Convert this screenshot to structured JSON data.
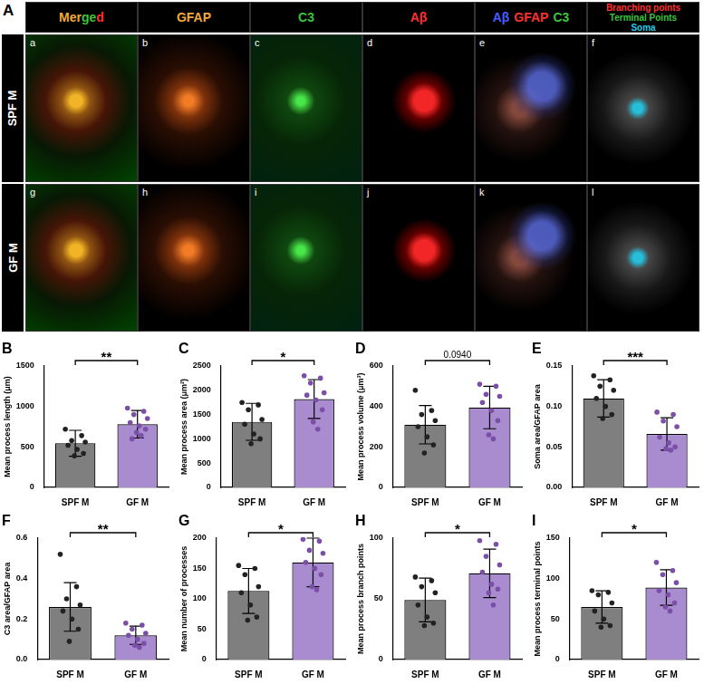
{
  "panel_a": {
    "label": "A",
    "columns": [
      {
        "parts": [
          {
            "text": "Mer",
            "color": "#f2a93b"
          },
          {
            "text": "ge",
            "color": "#3cc43c"
          },
          {
            "text": "d",
            "color": "#ff3030"
          }
        ]
      },
      {
        "parts": [
          {
            "text": "GFAP",
            "color": "#f2a93b"
          }
        ]
      },
      {
        "parts": [
          {
            "text": "C3",
            "color": "#3cc43c"
          }
        ]
      },
      {
        "parts": [
          {
            "text": "Aβ",
            "color": "#ff3030"
          }
        ]
      },
      {
        "parts": [
          {
            "text": "Aβ",
            "color": "#4a5cff"
          },
          {
            "text": "GFAP",
            "color": "#ff3030"
          },
          {
            "text": "C3",
            "color": "#3cc43c"
          }
        ]
      },
      {
        "lines": [
          {
            "text": "Branching points",
            "color": "#ff3030"
          },
          {
            "text": "Terminal Points",
            "color": "#3cc43c"
          },
          {
            "text": "Soma",
            "color": "#22c8e6"
          }
        ]
      }
    ],
    "rows": [
      {
        "label": "SPF M",
        "tiles": [
          "a",
          "b",
          "c",
          "d",
          "e",
          "f"
        ]
      },
      {
        "label": "GF M",
        "tiles": [
          "g",
          "h",
          "i",
          "j",
          "k",
          "l"
        ]
      }
    ]
  },
  "chart_data": [
    {
      "panel": "B",
      "type": "bar",
      "categories": [
        "SPF M",
        "GF M"
      ],
      "values": [
        545,
        780
      ],
      "error": [
        160,
        170
      ],
      "points": [
        [
          720,
          640,
          580,
          560,
          520,
          470,
          420,
          390
        ],
        [
          980,
          940,
          900,
          850,
          800,
          760,
          720,
          680,
          640,
          600
        ]
      ],
      "colors": [
        "#7f7f7f",
        "#a98bd0"
      ],
      "y_label": "Mean process length (μm)",
      "ylim": [
        0,
        1500
      ],
      "yticks": [
        0,
        500,
        1000,
        1500
      ],
      "annotations": [
        {
          "text": "**",
          "between": [
            "SPF M",
            "GF M"
          ]
        }
      ]
    },
    {
      "panel": "C",
      "type": "bar",
      "categories": [
        "SPF M",
        "GF M"
      ],
      "values": [
        1350,
        1820
      ],
      "error": [
        380,
        400
      ],
      "points": [
        [
          1750,
          1700,
          1600,
          1400,
          1300,
          1100,
          1000,
          900
        ],
        [
          2300,
          2250,
          2150,
          1950,
          1900,
          1800,
          1600,
          1350,
          1200
        ]
      ],
      "colors": [
        "#7f7f7f",
        "#a98bd0"
      ],
      "y_label": "Mean process area (μm²)",
      "ylim": [
        0,
        2500
      ],
      "yticks": [
        0,
        500,
        1000,
        1500,
        2000,
        2500
      ],
      "annotations": [
        {
          "text": "*",
          "between": [
            "SPF M",
            "GF M"
          ]
        }
      ]
    },
    {
      "panel": "D",
      "type": "bar",
      "categories": [
        "SPF M",
        "GF M"
      ],
      "values": [
        310,
        395
      ],
      "error": [
        95,
        105
      ],
      "points": [
        [
          480,
          380,
          360,
          330,
          300,
          250,
          210,
          170
        ],
        [
          510,
          500,
          460,
          450,
          420,
          380,
          330,
          260,
          240
        ]
      ],
      "colors": [
        "#7f7f7f",
        "#a98bd0"
      ],
      "y_label": "Mean process volume (μm³)",
      "ylim": [
        0,
        600
      ],
      "yticks": [
        0,
        200,
        400,
        600
      ],
      "annotations": [
        {
          "text": "0.0940",
          "between": [
            "SPF M",
            "GF M"
          ]
        }
      ]
    },
    {
      "panel": "E",
      "type": "bar",
      "categories": [
        "SPF M",
        "GF M"
      ],
      "values": [
        0.11,
        0.066
      ],
      "error": [
        0.023,
        0.02
      ],
      "points": [
        [
          0.138,
          0.133,
          0.125,
          0.12,
          0.11,
          0.1,
          0.09,
          0.085
        ],
        [
          0.093,
          0.09,
          0.082,
          0.075,
          0.062,
          0.055,
          0.05,
          0.048,
          0.046
        ]
      ],
      "colors": [
        "#7f7f7f",
        "#a98bd0"
      ],
      "y_label": "Soma area/GFAP area",
      "ylim": [
        0,
        0.15
      ],
      "yticks": [
        {
          "value": 0,
          "label": "0.00"
        },
        {
          "value": 0.05,
          "label": "0.05"
        },
        {
          "value": 0.1,
          "label": "0.10"
        },
        {
          "value": 0.15,
          "label": "0.15"
        }
      ],
      "annotations": [
        {
          "text": "***",
          "between": [
            "SPF M",
            "GF M"
          ]
        }
      ]
    },
    {
      "panel": "F",
      "type": "bar",
      "categories": [
        "SPF M",
        "GF M"
      ],
      "values": [
        0.26,
        0.12
      ],
      "error": [
        0.12,
        0.045
      ],
      "points": [
        [
          0.52,
          0.36,
          0.3,
          0.27,
          0.24,
          0.2,
          0.15,
          0.09
        ],
        [
          0.18,
          0.17,
          0.15,
          0.13,
          0.12,
          0.1,
          0.08,
          0.07,
          0.06
        ]
      ],
      "colors": [
        "#7f7f7f",
        "#a98bd0"
      ],
      "y_label": "C3 area/GFAP area",
      "ylim": [
        0,
        0.6
      ],
      "yticks": [
        {
          "value": 0,
          "label": "0.0"
        },
        {
          "value": 0.2,
          "label": "0.2"
        },
        {
          "value": 0.4,
          "label": "0.4"
        },
        {
          "value": 0.6,
          "label": "0.6"
        }
      ],
      "annotations": [
        {
          "text": "**",
          "between": [
            "SPF M",
            "GF M"
          ]
        }
      ]
    },
    {
      "panel": "G",
      "type": "bar",
      "categories": [
        "SPF M",
        "GF M"
      ],
      "values": [
        113,
        160
      ],
      "error": [
        37,
        40
      ],
      "points": [
        [
          155,
          150,
          140,
          120,
          110,
          90,
          70,
          65
        ],
        [
          198,
          195,
          180,
          175,
          160,
          150,
          140,
          120,
          115
        ]
      ],
      "colors": [
        "#7f7f7f",
        "#a98bd0"
      ],
      "y_label": "Mean number of processes",
      "ylim": [
        0,
        200
      ],
      "yticks": [
        0,
        50,
        100,
        150,
        200
      ],
      "annotations": [
        {
          "text": "*",
          "between": [
            "SPF M",
            "GF M"
          ]
        }
      ]
    },
    {
      "panel": "H",
      "type": "bar",
      "categories": [
        "SPF M",
        "GF M"
      ],
      "values": [
        49,
        71
      ],
      "error": [
        18,
        20
      ],
      "points": [
        [
          68,
          65,
          60,
          55,
          45,
          35,
          30,
          28
        ],
        [
          98,
          95,
          85,
          78,
          72,
          62,
          58,
          55,
          45
        ]
      ],
      "colors": [
        "#7f7f7f",
        "#a98bd0"
      ],
      "y_label": "Mean process branch points",
      "ylim": [
        0,
        100
      ],
      "yticks": [
        0,
        50,
        100
      ],
      "annotations": [
        {
          "text": "*",
          "between": [
            "SPF M",
            "GF M"
          ]
        }
      ]
    },
    {
      "panel": "I",
      "type": "bar",
      "categories": [
        "SPF M",
        "GF M"
      ],
      "values": [
        65,
        89
      ],
      "error": [
        20,
        22
      ],
      "points": [
        [
          85,
          83,
          80,
          70,
          60,
          50,
          42,
          40
        ],
        [
          120,
          110,
          105,
          95,
          85,
          80,
          70,
          65,
          60
        ]
      ],
      "colors": [
        "#7f7f7f",
        "#a98bd0"
      ],
      "y_label": "Mean process terminal points",
      "ylim": [
        0,
        150
      ],
      "yticks": [
        0,
        50,
        100,
        150
      ],
      "annotations": [
        {
          "text": "*",
          "between": [
            "SPF M",
            "GF M"
          ]
        }
      ]
    }
  ]
}
